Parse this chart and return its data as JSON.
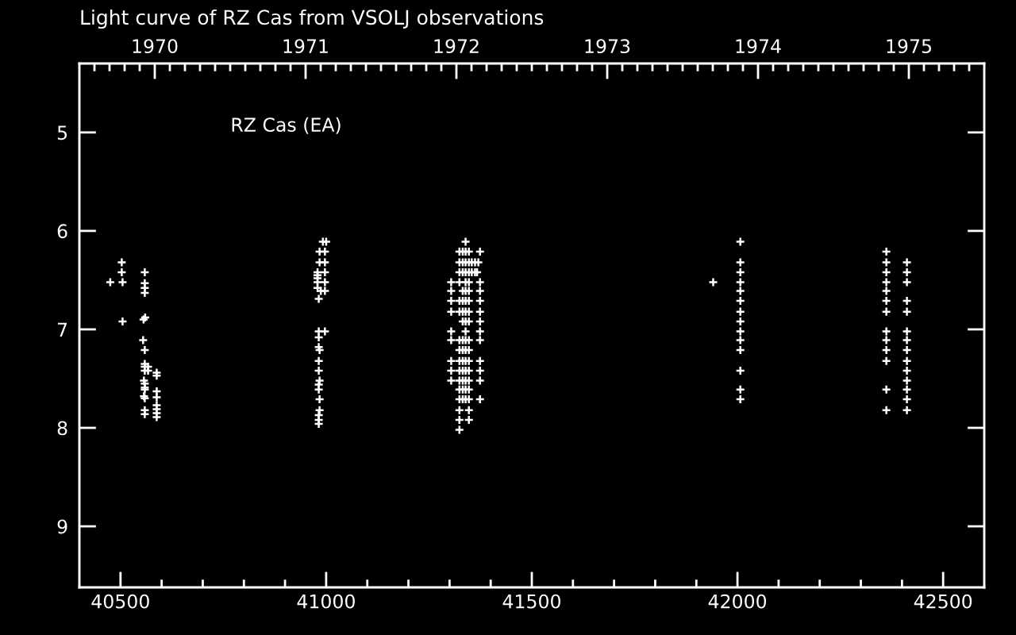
{
  "chart_data": {
    "type": "scatter",
    "title": "Light curve of RZ Cas from VSOLJ observations",
    "annotations": [
      "RZ Cas (EA)"
    ],
    "color": "#ffffff",
    "marker": "cross",
    "legend": false,
    "grid": false,
    "x": [
      40475,
      40503,
      40503,
      40505,
      40505,
      40559,
      40559,
      40559,
      40559,
      40556,
      40560,
      40555,
      40559,
      40559,
      40559,
      40567,
      40559,
      40567,
      40557,
      40559,
      40559,
      40559,
      40557,
      40559,
      40559,
      40559,
      40588,
      40588,
      40588,
      40588,
      40588,
      40588,
      40588,
      40588,
      40992,
      41000,
      40984,
      40997,
      40984,
      40997,
      40979,
      40997,
      40979,
      40979,
      40979,
      40997,
      40979,
      40987,
      40997,
      40982,
      40982,
      40997,
      40982,
      40982,
      40984,
      40982,
      40982,
      40984,
      40982,
      40982,
      40984,
      40984,
      40982,
      40982,
      40982,
      41339,
      41324,
      41332,
      41339,
      41347,
      41374,
      41324,
      41332,
      41339,
      41347,
      41354,
      41362,
      41370,
      41324,
      41332,
      41339,
      41347,
      41354,
      41362,
      41367,
      41304,
      41324,
      41339,
      41347,
      41374,
      41304,
      41332,
      41339,
      41347,
      41374,
      41304,
      41324,
      41332,
      41339,
      41347,
      41374,
      41304,
      41324,
      41332,
      41339,
      41347,
      41374,
      41332,
      41339,
      41347,
      41374,
      41304,
      41339,
      41374,
      41304,
      41324,
      41332,
      41339,
      41347,
      41374,
      41324,
      41332,
      41339,
      41347,
      41304,
      41324,
      41332,
      41339,
      41347,
      41374,
      41304,
      41324,
      41332,
      41339,
      41347,
      41374,
      41304,
      41324,
      41332,
      41339,
      41347,
      41374,
      41324,
      41332,
      41339,
      41347,
      41324,
      41332,
      41339,
      41347,
      41374,
      41324,
      41347,
      41324,
      41347,
      41324,
      41941,
      42007,
      42007,
      42007,
      42007,
      42007,
      42007,
      42007,
      42007,
      42007,
      42007,
      42007,
      42007,
      42007,
      42007,
      42362,
      42362,
      42362,
      42362,
      42362,
      42362,
      42362,
      42362,
      42362,
      42362,
      42362,
      42362,
      42362,
      42412,
      42412,
      42412,
      42412,
      42412,
      42412,
      42412,
      42412,
      42412,
      42412,
      42412,
      42412,
      42412,
      42412
    ],
    "values": [
      6.52,
      6.32,
      6.42,
      6.52,
      6.92,
      6.42,
      6.53,
      6.58,
      6.63,
      6.9,
      6.88,
      7.11,
      7.21,
      7.35,
      7.38,
      7.38,
      7.42,
      7.42,
      7.52,
      7.55,
      7.59,
      7.61,
      7.68,
      7.7,
      7.82,
      7.86,
      7.44,
      7.47,
      7.63,
      7.69,
      7.77,
      7.81,
      7.85,
      7.89,
      6.11,
      6.11,
      6.21,
      6.21,
      6.32,
      6.32,
      6.42,
      6.42,
      6.45,
      6.48,
      6.52,
      6.52,
      6.58,
      6.61,
      6.61,
      6.69,
      7.02,
      7.02,
      7.08,
      7.18,
      7.21,
      7.32,
      7.42,
      7.52,
      7.56,
      7.61,
      7.71,
      7.82,
      7.87,
      7.92,
      7.96,
      6.11,
      6.21,
      6.21,
      6.21,
      6.21,
      6.21,
      6.32,
      6.32,
      6.32,
      6.32,
      6.32,
      6.32,
      6.32,
      6.42,
      6.42,
      6.42,
      6.42,
      6.42,
      6.42,
      6.42,
      6.52,
      6.52,
      6.52,
      6.52,
      6.52,
      6.61,
      6.61,
      6.61,
      6.61,
      6.61,
      6.71,
      6.71,
      6.71,
      6.71,
      6.71,
      6.71,
      6.82,
      6.82,
      6.82,
      6.82,
      6.82,
      6.82,
      6.92,
      6.92,
      6.92,
      6.92,
      7.02,
      7.02,
      7.02,
      7.11,
      7.11,
      7.11,
      7.11,
      7.11,
      7.11,
      7.21,
      7.21,
      7.21,
      7.21,
      7.32,
      7.32,
      7.32,
      7.32,
      7.32,
      7.32,
      7.42,
      7.42,
      7.42,
      7.42,
      7.42,
      7.42,
      7.52,
      7.52,
      7.52,
      7.52,
      7.52,
      7.52,
      7.61,
      7.61,
      7.61,
      7.61,
      7.71,
      7.71,
      7.71,
      7.71,
      7.71,
      7.82,
      7.82,
      7.92,
      7.92,
      8.02,
      6.52,
      6.11,
      6.32,
      6.42,
      6.52,
      6.61,
      6.71,
      6.82,
      6.92,
      7.02,
      7.11,
      7.21,
      7.42,
      7.61,
      7.71,
      6.21,
      6.32,
      6.42,
      6.52,
      6.61,
      6.71,
      6.82,
      7.02,
      7.11,
      7.21,
      7.32,
      7.61,
      7.82,
      6.32,
      6.42,
      6.52,
      6.71,
      6.82,
      7.02,
      7.11,
      7.21,
      7.32,
      7.42,
      7.52,
      7.61,
      7.71,
      7.82
    ],
    "xlim": [
      40400,
      42600
    ],
    "xticks": [
      40500,
      {
        "value": 40600,
        "label": null
      },
      {
        "value": 40700,
        "label": null
      },
      {
        "value": 40800,
        "label": null
      },
      {
        "value": 40900,
        "label": null
      },
      41000,
      {
        "value": 41100,
        "label": null
      },
      {
        "value": 41200,
        "label": null
      },
      {
        "value": 41300,
        "label": null
      },
      {
        "value": 41400,
        "label": null
      },
      41500,
      {
        "value": 41600,
        "label": null
      },
      {
        "value": 41700,
        "label": null
      },
      {
        "value": 41800,
        "label": null
      },
      {
        "value": 41900,
        "label": null
      },
      42000,
      {
        "value": 42100,
        "label": null
      },
      {
        "value": 42200,
        "label": null
      },
      {
        "value": 42300,
        "label": null
      },
      {
        "value": 42400,
        "label": null
      },
      42500
    ],
    "ylim": [
      9.62,
      4.3
    ],
    "yticks": [
      5,
      6,
      7,
      8,
      9
    ],
    "x2lim": [
      1969.5,
      1975.5
    ],
    "x2ticks": [
      {
        "value": 1969.6,
        "label": null
      },
      {
        "value": 1969.7,
        "label": null
      },
      {
        "value": 1969.8,
        "label": null
      },
      {
        "value": 1969.9,
        "label": null
      },
      1970,
      {
        "value": 1970.1,
        "label": null
      },
      {
        "value": 1970.2,
        "label": null
      },
      {
        "value": 1970.3,
        "label": null
      },
      {
        "value": 1970.4,
        "label": null
      },
      {
        "value": 1970.5,
        "label": null
      },
      {
        "value": 1970.6,
        "label": null
      },
      {
        "value": 1970.7,
        "label": null
      },
      {
        "value": 1970.8,
        "label": null
      },
      {
        "value": 1970.9,
        "label": null
      },
      1971,
      {
        "value": 1971.1,
        "label": null
      },
      {
        "value": 1971.2,
        "label": null
      },
      {
        "value": 1971.3,
        "label": null
      },
      {
        "value": 1971.4,
        "label": null
      },
      {
        "value": 1971.5,
        "label": null
      },
      {
        "value": 1971.6,
        "label": null
      },
      {
        "value": 1971.7,
        "label": null
      },
      {
        "value": 1971.8,
        "label": null
      },
      {
        "value": 1971.9,
        "label": null
      },
      1972,
      {
        "value": 1972.1,
        "label": null
      },
      {
        "value": 1972.2,
        "label": null
      },
      {
        "value": 1972.3,
        "label": null
      },
      {
        "value": 1972.4,
        "label": null
      },
      {
        "value": 1972.5,
        "label": null
      },
      {
        "value": 1972.6,
        "label": null
      },
      {
        "value": 1972.7,
        "label": null
      },
      {
        "value": 1972.8,
        "label": null
      },
      {
        "value": 1972.9,
        "label": null
      },
      1973,
      {
        "value": 1973.1,
        "label": null
      },
      {
        "value": 1973.2,
        "label": null
      },
      {
        "value": 1973.3,
        "label": null
      },
      {
        "value": 1973.4,
        "label": null
      },
      {
        "value": 1973.5,
        "label": null
      },
      {
        "value": 1973.6,
        "label": null
      },
      {
        "value": 1973.7,
        "label": null
      },
      {
        "value": 1973.8,
        "label": null
      },
      {
        "value": 1973.9,
        "label": null
      },
      1974,
      {
        "value": 1974.1,
        "label": null
      },
      {
        "value": 1974.2,
        "label": null
      },
      {
        "value": 1974.3,
        "label": null
      },
      {
        "value": 1974.4,
        "label": null
      },
      {
        "value": 1974.5,
        "label": null
      },
      {
        "value": 1974.6,
        "label": null
      },
      {
        "value": 1974.7,
        "label": null
      },
      {
        "value": 1974.8,
        "label": null
      },
      {
        "value": 1974.9,
        "label": null
      },
      1975,
      {
        "value": 1975.1,
        "label": null
      },
      {
        "value": 1975.2,
        "label": null
      },
      {
        "value": 1975.3,
        "label": null
      },
      {
        "value": 1975.4,
        "label": null
      }
    ]
  }
}
